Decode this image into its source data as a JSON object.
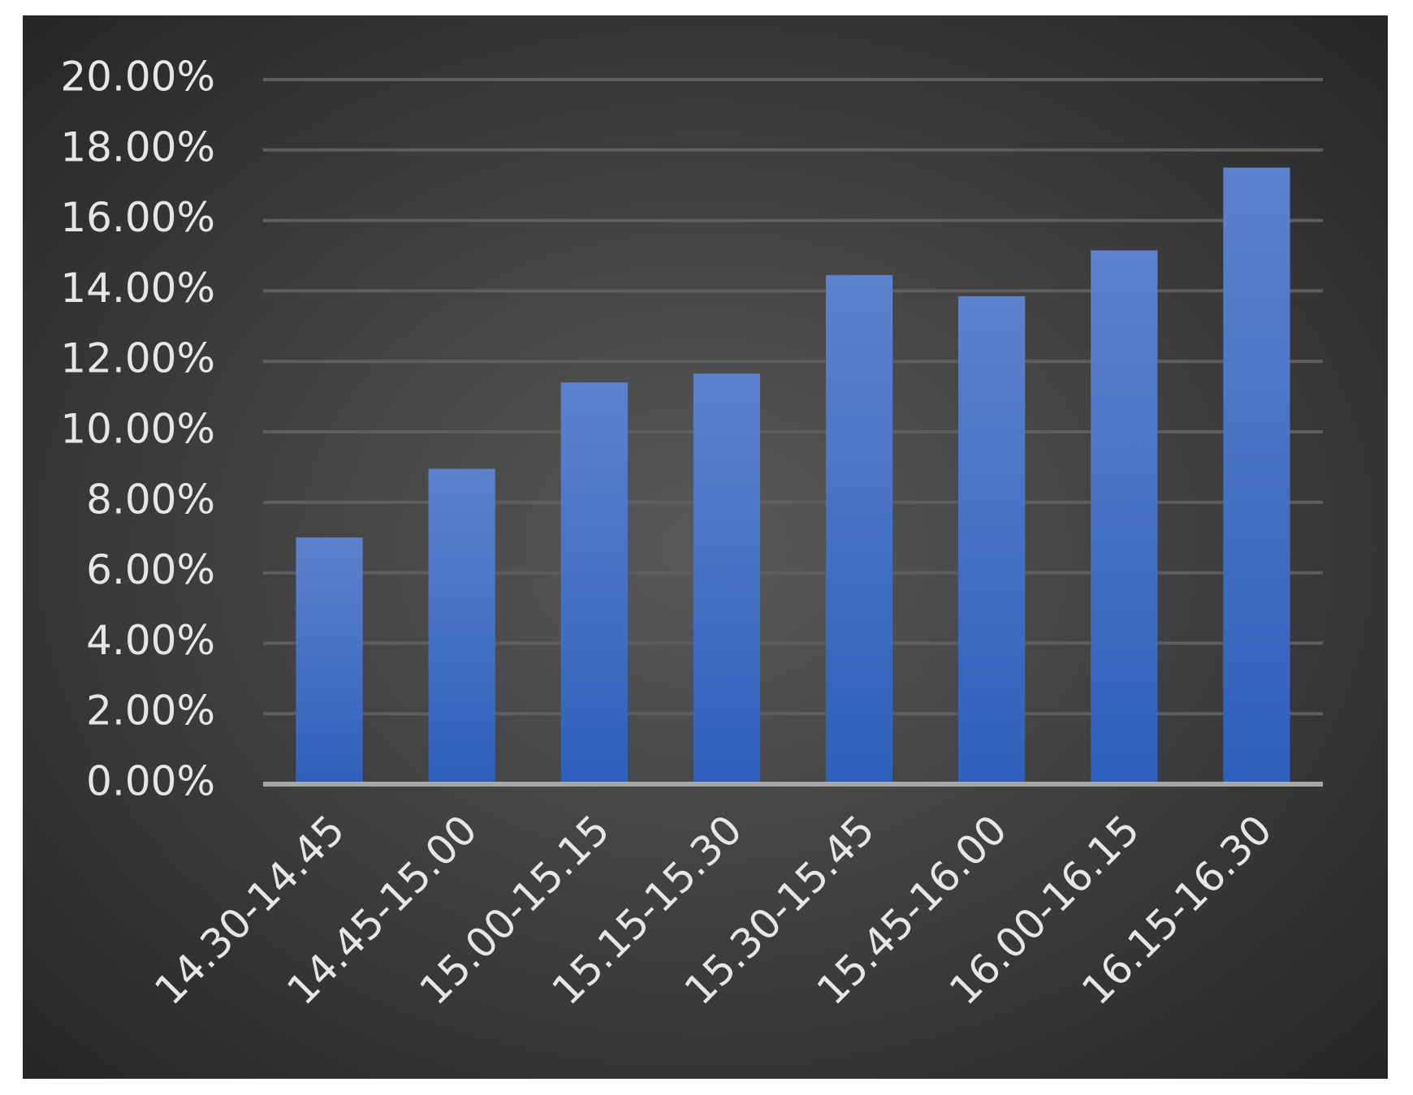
{
  "chart_data": {
    "type": "bar",
    "categories": [
      "14.30-14.45",
      "14.45-15.00",
      "15.00-15.15",
      "15.15-15.30",
      "15.30-15.45",
      "15.45-16.00",
      "16.00-16.15",
      "16.15-16.30"
    ],
    "values": [
      7.0,
      8.95,
      11.4,
      11.65,
      14.45,
      13.85,
      15.15,
      17.5
    ],
    "color": "#4472c4",
    "ylim": [
      0,
      20
    ],
    "yticks": [
      {
        "value": 0,
        "label": "0.00%"
      },
      {
        "value": 2,
        "label": "2.00%"
      },
      {
        "value": 4,
        "label": "4.00%"
      },
      {
        "value": 6,
        "label": "6.00%"
      },
      {
        "value": 8,
        "label": "8.00%"
      },
      {
        "value": 10,
        "label": "10.00%"
      },
      {
        "value": 12,
        "label": "12.00%"
      },
      {
        "value": 14,
        "label": "14.00%"
      },
      {
        "value": 16,
        "label": "16.00%"
      },
      {
        "value": 18,
        "label": "18.00%"
      },
      {
        "value": 20,
        "label": "20.00%"
      }
    ],
    "grid": true
  }
}
